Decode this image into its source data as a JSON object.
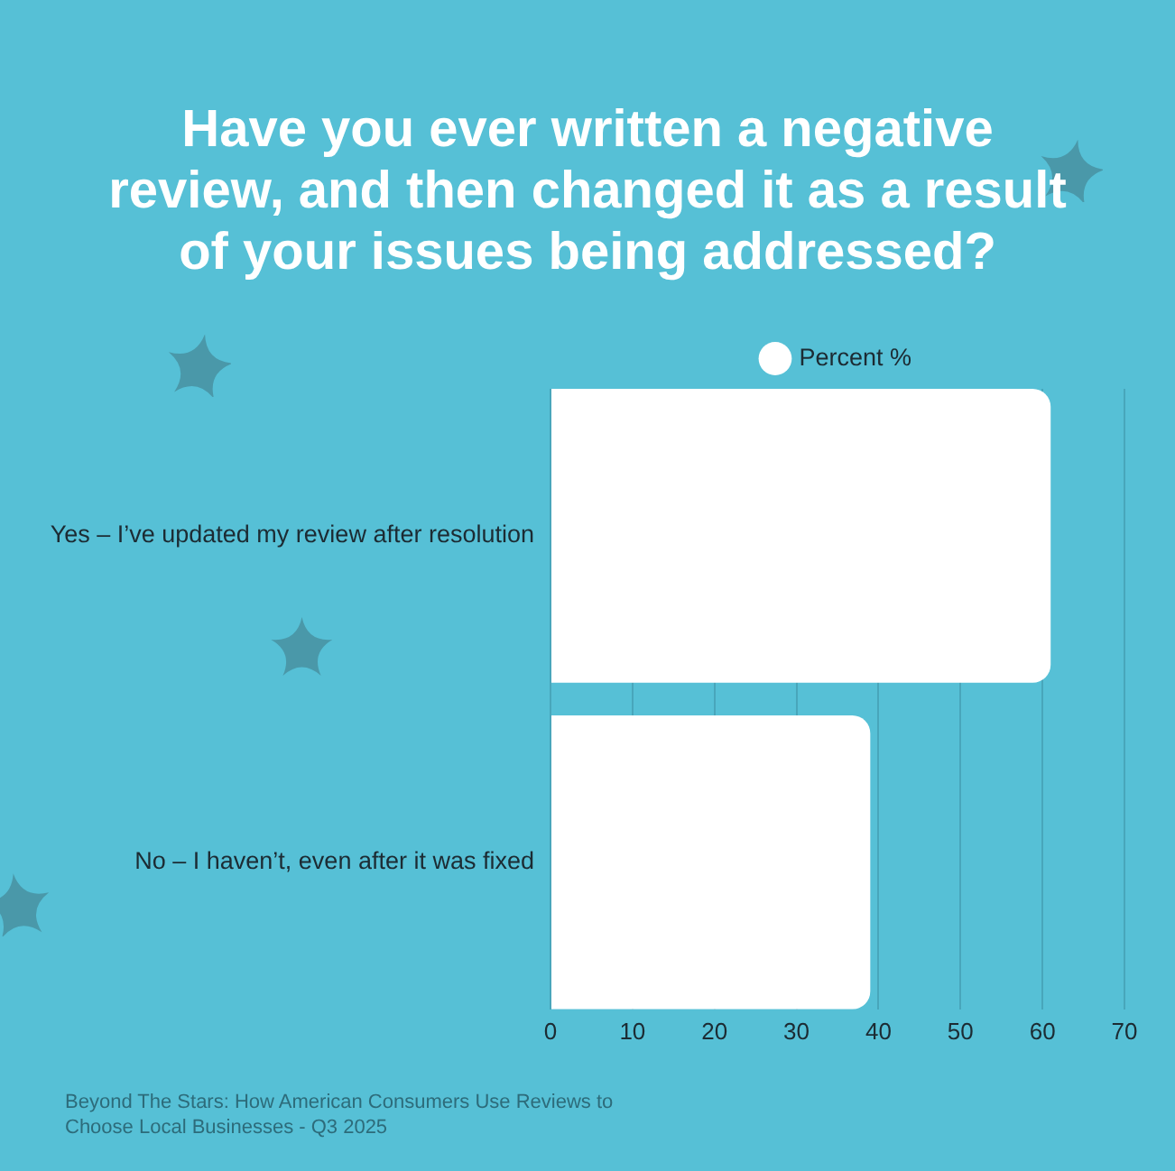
{
  "chart_data": {
    "type": "bar",
    "title": "Have you ever written a negative review, and then changed it as a result of your issues being addressed?",
    "orientation": "horizontal",
    "categories": [
      "Yes – I’ve updated my review after resolution",
      "No – I haven’t, even after it was fixed"
    ],
    "series": [
      {
        "name": "Percent %",
        "color": "#ffffff",
        "values": [
          61,
          39
        ]
      }
    ],
    "xlim": [
      0,
      70
    ],
    "xticks": [
      0,
      10,
      20,
      30,
      40,
      50,
      60,
      70
    ],
    "grid": "x",
    "legend": "top",
    "annotations": [
      "Beyond The Stars: How American Consumers Use Reviews to Choose Local Businesses - Q3 2025"
    ]
  }
}
